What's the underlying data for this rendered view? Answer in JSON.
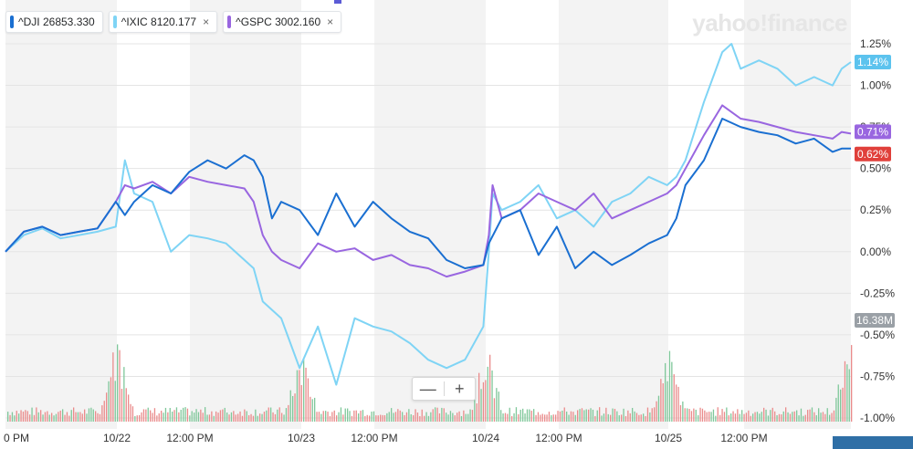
{
  "chart_data": {
    "type": "line",
    "watermark": "yahoo!finance",
    "x_tick_labels": [
      "0 PM",
      "10/22",
      "12:00 PM",
      "10/23",
      "12:00 PM",
      "10/24",
      "12:00 PM",
      "10/25",
      "12:00 PM"
    ],
    "y_tick_labels": [
      "1.25%",
      "1.00%",
      "0.75%",
      "0.50%",
      "0.25%",
      "0.00%",
      "-0.25%",
      "-0.50%",
      "-0.75%",
      "-1.00%"
    ],
    "ylim": [
      -1.0,
      1.25
    ],
    "grid": true,
    "legend_position": "top-left",
    "volume_label": "16.38M",
    "series": [
      {
        "name": "^DJI",
        "value": "26853.330",
        "color": "#1a6fd1",
        "last_label": "0.62%",
        "last_badge_color": "#e0403b",
        "points": [
          [
            0,
            0.0
          ],
          [
            10,
            0.12
          ],
          [
            20,
            0.15
          ],
          [
            30,
            0.1
          ],
          [
            40,
            0.12
          ],
          [
            50,
            0.14
          ],
          [
            60,
            0.3
          ],
          [
            65,
            0.22
          ],
          [
            70,
            0.3
          ],
          [
            80,
            0.4
          ],
          [
            90,
            0.35
          ],
          [
            100,
            0.48
          ],
          [
            110,
            0.55
          ],
          [
            120,
            0.5
          ],
          [
            130,
            0.58
          ],
          [
            135,
            0.55
          ],
          [
            140,
            0.45
          ],
          [
            145,
            0.2
          ],
          [
            150,
            0.3
          ],
          [
            160,
            0.25
          ],
          [
            170,
            0.1
          ],
          [
            180,
            0.35
          ],
          [
            190,
            0.15
          ],
          [
            200,
            0.3
          ],
          [
            210,
            0.2
          ],
          [
            220,
            0.12
          ],
          [
            230,
            0.08
          ],
          [
            240,
            -0.05
          ],
          [
            250,
            -0.1
          ],
          [
            260,
            -0.08
          ],
          [
            263,
            0.05
          ],
          [
            270,
            0.2
          ],
          [
            280,
            0.25
          ],
          [
            290,
            -0.02
          ],
          [
            300,
            0.15
          ],
          [
            310,
            -0.1
          ],
          [
            320,
            0.0
          ],
          [
            330,
            -0.08
          ],
          [
            340,
            -0.02
          ],
          [
            350,
            0.05
          ],
          [
            360,
            0.1
          ],
          [
            365,
            0.2
          ],
          [
            370,
            0.4
          ],
          [
            380,
            0.55
          ],
          [
            390,
            0.8
          ],
          [
            400,
            0.75
          ],
          [
            410,
            0.72
          ],
          [
            420,
            0.7
          ],
          [
            430,
            0.65
          ],
          [
            440,
            0.68
          ],
          [
            450,
            0.6
          ],
          [
            455,
            0.62
          ],
          [
            460,
            0.62
          ]
        ]
      },
      {
        "name": "^IXIC",
        "value": "8120.177",
        "color": "#7fd4f5",
        "last_label": "1.14%",
        "last_badge_color": "#5cc3ee",
        "points": [
          [
            0,
            0.0
          ],
          [
            10,
            0.1
          ],
          [
            20,
            0.14
          ],
          [
            30,
            0.08
          ],
          [
            40,
            0.1
          ],
          [
            50,
            0.12
          ],
          [
            60,
            0.15
          ],
          [
            65,
            0.55
          ],
          [
            70,
            0.35
          ],
          [
            80,
            0.3
          ],
          [
            90,
            0.0
          ],
          [
            100,
            0.1
          ],
          [
            110,
            0.08
          ],
          [
            120,
            0.05
          ],
          [
            130,
            -0.05
          ],
          [
            135,
            -0.1
          ],
          [
            140,
            -0.3
          ],
          [
            150,
            -0.4
          ],
          [
            160,
            -0.7
          ],
          [
            170,
            -0.45
          ],
          [
            180,
            -0.8
          ],
          [
            190,
            -0.4
          ],
          [
            200,
            -0.45
          ],
          [
            210,
            -0.48
          ],
          [
            220,
            -0.55
          ],
          [
            230,
            -0.65
          ],
          [
            240,
            -0.7
          ],
          [
            250,
            -0.65
          ],
          [
            260,
            -0.45
          ],
          [
            263,
            0.0
          ],
          [
            265,
            0.35
          ],
          [
            270,
            0.25
          ],
          [
            280,
            0.3
          ],
          [
            290,
            0.4
          ],
          [
            300,
            0.2
          ],
          [
            310,
            0.25
          ],
          [
            320,
            0.15
          ],
          [
            330,
            0.3
          ],
          [
            340,
            0.35
          ],
          [
            350,
            0.45
          ],
          [
            360,
            0.4
          ],
          [
            365,
            0.45
          ],
          [
            370,
            0.55
          ],
          [
            380,
            0.9
          ],
          [
            390,
            1.2
          ],
          [
            395,
            1.25
          ],
          [
            400,
            1.1
          ],
          [
            410,
            1.15
          ],
          [
            420,
            1.1
          ],
          [
            430,
            1.0
          ],
          [
            440,
            1.05
          ],
          [
            450,
            1.0
          ],
          [
            455,
            1.1
          ],
          [
            460,
            1.14
          ]
        ]
      },
      {
        "name": "^GSPC",
        "value": "3002.160",
        "color": "#9966e0",
        "last_label": "0.71%",
        "last_badge_color": "#9966e0",
        "points": [
          [
            0,
            0.0
          ],
          [
            10,
            0.12
          ],
          [
            20,
            0.15
          ],
          [
            30,
            0.1
          ],
          [
            40,
            0.12
          ],
          [
            50,
            0.14
          ],
          [
            60,
            0.3
          ],
          [
            65,
            0.4
          ],
          [
            70,
            0.38
          ],
          [
            80,
            0.42
          ],
          [
            90,
            0.35
          ],
          [
            100,
            0.45
          ],
          [
            110,
            0.42
          ],
          [
            120,
            0.4
          ],
          [
            130,
            0.38
          ],
          [
            135,
            0.3
          ],
          [
            140,
            0.1
          ],
          [
            145,
            0.0
          ],
          [
            150,
            -0.05
          ],
          [
            160,
            -0.1
          ],
          [
            170,
            0.05
          ],
          [
            180,
            0.0
          ],
          [
            190,
            0.02
          ],
          [
            200,
            -0.05
          ],
          [
            210,
            -0.02
          ],
          [
            220,
            -0.08
          ],
          [
            230,
            -0.1
          ],
          [
            240,
            -0.15
          ],
          [
            250,
            -0.12
          ],
          [
            260,
            -0.08
          ],
          [
            263,
            0.1
          ],
          [
            265,
            0.4
          ],
          [
            270,
            0.2
          ],
          [
            280,
            0.25
          ],
          [
            290,
            0.35
          ],
          [
            300,
            0.3
          ],
          [
            310,
            0.25
          ],
          [
            320,
            0.35
          ],
          [
            330,
            0.2
          ],
          [
            340,
            0.25
          ],
          [
            350,
            0.3
          ],
          [
            360,
            0.35
          ],
          [
            365,
            0.4
          ],
          [
            370,
            0.5
          ],
          [
            380,
            0.7
          ],
          [
            390,
            0.88
          ],
          [
            400,
            0.8
          ],
          [
            410,
            0.78
          ],
          [
            420,
            0.75
          ],
          [
            430,
            0.72
          ],
          [
            440,
            0.7
          ],
          [
            450,
            0.68
          ],
          [
            455,
            0.72
          ],
          [
            460,
            0.71
          ]
        ]
      }
    ]
  },
  "zoom": {
    "minus": "—",
    "plus": "+"
  },
  "legend_close_glyph": "×"
}
